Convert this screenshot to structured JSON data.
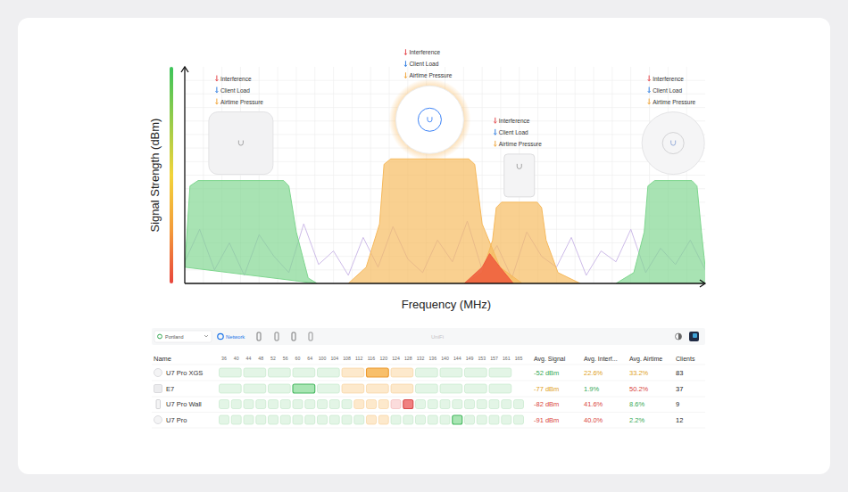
{
  "chart_data": {
    "type": "area",
    "x_label": "Frequency (MHz)",
    "y_label": "Signal Strength (dBm)",
    "xlim": [
      5150,
      5850
    ],
    "ylim": [
      -100,
      -20
    ],
    "xticks": [
      5175,
      5200,
      5225,
      5250,
      5275,
      5300,
      5325,
      5350,
      5375,
      5400,
      5425,
      5450,
      5475,
      5500,
      5525,
      5550,
      5575,
      5600,
      5625,
      5650,
      5675,
      5700,
      5725,
      5750,
      5775,
      5800,
      5825
    ],
    "yticks": [
      -95,
      -90,
      -85,
      -80,
      -75,
      -70,
      -65,
      -60,
      -55,
      -50,
      -45,
      -40,
      -35,
      -30,
      -25
    ],
    "grid": true,
    "tick_labels": false,
    "series": [
      {
        "type": "area",
        "color": "#7fd68f",
        "x": [
          5150,
          5157,
          5168,
          5283,
          5290,
          5300,
          5316,
          5328
        ],
        "values": [
          -94,
          -64,
          -62,
          -62,
          -64,
          -81,
          -98,
          -100
        ],
        "annotations": [
          "Interference",
          "Client Load",
          "Airtime Pressure"
        ]
      },
      {
        "type": "area",
        "color": "#f6b95c",
        "x": [
          5370,
          5394,
          5412,
          5418,
          5427,
          5532,
          5540,
          5550,
          5574,
          5604
        ],
        "values": [
          -100,
          -94,
          -78,
          -56,
          -54,
          -54,
          -56,
          -78,
          -94,
          -100
        ],
        "annotations": [
          "Interference",
          "Client Load",
          "Airtime Pressure"
        ]
      },
      {
        "type": "area",
        "color": "#f6b95c",
        "x": [
          5526,
          5550,
          5564,
          5569,
          5576,
          5624,
          5630,
          5636,
          5652,
          5682
        ],
        "values": [
          -100,
          -96,
          -84,
          -72,
          -70,
          -70,
          -72,
          -84,
          -96,
          -100
        ],
        "annotations": [
          "Interference",
          "Client Load",
          "Airtime Pressure"
        ]
      },
      {
        "type": "area",
        "color": "#7fd68f",
        "x": [
          5730,
          5754,
          5768,
          5773,
          5782,
          5832,
          5839,
          5845,
          5850,
          5862
        ],
        "values": [
          -100,
          -96,
          -81,
          -64,
          -62,
          -62,
          -64,
          -81,
          -94,
          -100
        ],
        "annotations": [
          "Interference",
          "Client Load",
          "Airtime Pressure"
        ]
      },
      {
        "type": "area",
        "color": "#ef5b3c",
        "x": [
          5526,
          5550,
          5560,
          5574,
          5592
        ],
        "values": [
          -100,
          -94,
          -89,
          -94,
          -100
        ]
      },
      {
        "type": "line",
        "color": "#c8b4e6",
        "x": [
          5150,
          5170,
          5190,
          5210,
          5230,
          5250,
          5270,
          5290,
          5310,
          5330,
          5350,
          5370,
          5390,
          5410,
          5430,
          5450,
          5470,
          5490,
          5510,
          5530,
          5550,
          5570,
          5590,
          5610,
          5630,
          5650,
          5670,
          5690,
          5710,
          5730,
          5750,
          5770,
          5790,
          5810,
          5830,
          5850
        ],
        "values": [
          -92,
          -80,
          -95,
          -85,
          -97,
          -82,
          -90,
          -96,
          -78,
          -93,
          -88,
          -97,
          -83,
          -94,
          -79,
          -91,
          -96,
          -84,
          -92,
          -77,
          -95,
          -86,
          -98,
          -81,
          -90,
          -94,
          -83,
          -97,
          -88,
          -92,
          -80,
          -96,
          -87,
          -93,
          -84,
          -95
        ]
      }
    ]
  },
  "table": {
    "toolbar": {
      "site": "Portland",
      "tab": "Network",
      "brand": "UniFi"
    },
    "columns": [
      "Name",
      "Avg. Signal",
      "Avg. Interf...",
      "Avg. Airtime",
      "Clients"
    ],
    "channels": [
      36,
      40,
      44,
      48,
      52,
      56,
      60,
      64,
      100,
      104,
      108,
      112,
      116,
      120,
      124,
      128,
      132,
      136,
      140,
      144,
      149,
      153,
      157,
      161,
      165
    ],
    "rows": [
      {
        "name": "U7 Pro XGS",
        "span": 2,
        "levels": [
          0,
          0,
          0,
          0,
          0,
          1,
          1,
          1,
          0,
          0,
          0,
          0
        ],
        "selected": 6,
        "cells": [
          "-52 dBm",
          "22.6%",
          "33.2%",
          "83"
        ],
        "colors": [
          "#34a853",
          "#e0a11b",
          "#e0a11b",
          "#222222"
        ]
      },
      {
        "name": "E7",
        "span": 2,
        "levels": [
          0,
          0,
          0,
          0,
          0,
          1,
          1,
          1,
          0,
          0,
          0,
          0
        ],
        "selected": 3,
        "cells": [
          "-77 dBm",
          "1.9%",
          "50.2%",
          "37"
        ],
        "colors": [
          "#e0a11b",
          "#34a853",
          "#d9443c",
          "#222222"
        ]
      },
      {
        "name": "U7 Pro Wall",
        "span": 1,
        "levels": [
          0,
          0,
          0,
          0,
          0,
          0,
          0,
          0,
          0,
          0,
          0,
          1,
          1,
          1,
          2,
          2,
          0,
          0,
          0,
          0,
          0,
          0,
          0,
          0,
          0
        ],
        "selected": 15,
        "cells": [
          "-82 dBm",
          "41.6%",
          "8.6%",
          "9"
        ],
        "colors": [
          "#d9443c",
          "#d9443c",
          "#34a853",
          "#222222"
        ]
      },
      {
        "name": "U7 Pro",
        "span": 1,
        "levels": [
          0,
          0,
          0,
          0,
          0,
          0,
          0,
          0,
          0,
          0,
          0,
          0,
          1,
          1,
          0,
          0,
          0,
          0,
          0,
          0,
          0,
          0,
          0,
          0,
          0
        ],
        "selected": 19,
        "cells": [
          "-91 dBm",
          "40.0%",
          "2.2%",
          "12"
        ],
        "colors": [
          "#d9443c",
          "#d9443c",
          "#34a853",
          "#222222"
        ]
      }
    ]
  }
}
